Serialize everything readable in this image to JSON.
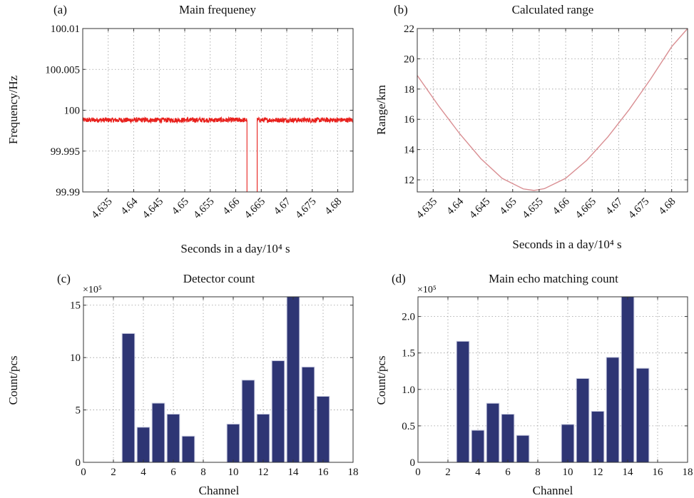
{
  "chart_data": [
    {
      "type": "line",
      "panel_label": "(a)",
      "title": "Main frequeney",
      "xlabel": "Seconds in a day/10⁴ s",
      "ylabel": "Frequency/Hz",
      "xlim": [
        4.63,
        4.683
      ],
      "ylim": [
        99.99,
        100.01
      ],
      "xticks": [
        4.635,
        4.64,
        4.645,
        4.65,
        4.655,
        4.66,
        4.665,
        4.67,
        4.675,
        4.68
      ],
      "xtick_labels": [
        "4.635",
        "4.64",
        "4.645",
        "4.65",
        "4.655",
        "4.66",
        "4.665",
        "4.67",
        "4.675",
        "4.68"
      ],
      "yticks": [
        99.99,
        99.995,
        100,
        100.005,
        100.01
      ],
      "ytick_labels": [
        "99.99",
        "99.995",
        "100",
        "100.005",
        "100.01"
      ],
      "grid": true,
      "color": "#e8211d",
      "series": [
        {
          "band_center": 99.9988,
          "band_halfwidth": 0.0003,
          "segments": [
            [
              4.63,
              4.6622
            ],
            [
              4.6642,
              4.683
            ]
          ],
          "gap_edges": [
            4.6622,
            4.6642
          ]
        }
      ]
    },
    {
      "type": "line",
      "panel_label": "(b)",
      "title": "Calculated range",
      "xlabel": "Seconds in a day/10⁴ s",
      "ylabel": "Range/km",
      "xlim": [
        4.632,
        4.683
      ],
      "ylim": [
        11.2,
        22
      ],
      "xticks": [
        4.635,
        4.64,
        4.645,
        4.65,
        4.655,
        4.66,
        4.665,
        4.67,
        4.675,
        4.68
      ],
      "xtick_labels": [
        "4.635",
        "4.64",
        "4.645",
        "4.65",
        "4.655",
        "4.66",
        "4.665",
        "4.67",
        "4.675",
        "4.68"
      ],
      "yticks": [
        12,
        14,
        16,
        18,
        20,
        22
      ],
      "ytick_labels": [
        "12",
        "14",
        "16",
        "18",
        "20",
        "22"
      ],
      "grid": true,
      "color": "#d98e92",
      "series": [
        {
          "x": [
            4.632,
            4.636,
            4.64,
            4.644,
            4.648,
            4.652,
            4.654,
            4.656,
            4.66,
            4.664,
            4.668,
            4.672,
            4.676,
            4.68,
            4.683
          ],
          "y": [
            18.9,
            16.9,
            15.05,
            13.4,
            12.1,
            11.4,
            11.3,
            11.42,
            12.1,
            13.3,
            14.85,
            16.65,
            18.65,
            20.8,
            22.0
          ]
        }
      ]
    },
    {
      "type": "bar",
      "panel_label": "(c)",
      "title": "Detector count",
      "multiplier": "×10⁵",
      "xlabel": "Channel",
      "ylabel": "Count/pcs",
      "xlim": [
        0,
        18
      ],
      "ylim": [
        0,
        15.8
      ],
      "xticks": [
        0,
        2,
        4,
        6,
        8,
        10,
        12,
        14,
        16,
        18
      ],
      "xtick_labels": [
        "0",
        "2",
        "4",
        "6",
        "8",
        "10",
        "12",
        "14",
        "16",
        "18"
      ],
      "yticks": [
        0,
        5,
        10,
        15
      ],
      "ytick_labels": [
        "0",
        "5",
        "10",
        "15"
      ],
      "grid": true,
      "color": "#2e3574",
      "categories": [
        3,
        4,
        5,
        6,
        7,
        10,
        11,
        12,
        13,
        14,
        15,
        16
      ],
      "values": [
        12.3,
        3.35,
        5.65,
        4.6,
        2.5,
        3.65,
        7.85,
        4.6,
        9.7,
        15.8,
        9.1,
        6.3
      ]
    },
    {
      "type": "bar",
      "panel_label": "(d)",
      "title": "Main echo matching count",
      "multiplier": "×10⁵",
      "xlabel": "Channel",
      "ylabel": "Count/pcs",
      "xlim": [
        0,
        18
      ],
      "ylim": [
        0,
        2.27
      ],
      "xticks": [
        0,
        2,
        4,
        6,
        8,
        10,
        12,
        14,
        16,
        18
      ],
      "xtick_labels": [
        "0",
        "2",
        "4",
        "6",
        "8",
        "10",
        "12",
        "14",
        "16",
        "18"
      ],
      "yticks": [
        0,
        0.5,
        1.0,
        1.5,
        2.0
      ],
      "ytick_labels": [
        "0",
        "0.5",
        "1.0",
        "1.5",
        "2.0"
      ],
      "grid": true,
      "color": "#2e3574",
      "categories": [
        3,
        4,
        5,
        6,
        7,
        10,
        11,
        12,
        13,
        14,
        15
      ],
      "values": [
        1.66,
        0.44,
        0.81,
        0.66,
        0.37,
        0.52,
        1.15,
        0.7,
        1.44,
        2.27,
        1.29
      ]
    }
  ]
}
